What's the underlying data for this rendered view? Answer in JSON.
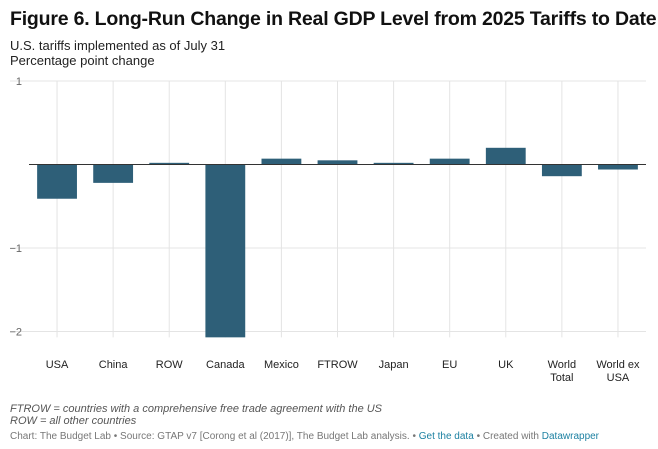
{
  "header": {
    "title": "Figure 6. Long-Run Change in Real GDP Level from 2025 Tariffs to Date",
    "subtitle_line1": "U.S. tariffs implemented as of July 31",
    "subtitle_line2": "Percentage point change"
  },
  "notes": {
    "line1": "FTROW = countries with a comprehensive free trade agreement with the US",
    "line2": "ROW = all other countries"
  },
  "footer": {
    "source": "Chart: The Budget Lab • Source: GTAP v7 [Corong et al (2017)], The Budget Lab analysis. •",
    "get_data": "Get the data",
    "sep": "• Created with",
    "tool": "Datawrapper"
  },
  "colors": {
    "bar": "#2e5f78",
    "grid": "#e4e4e4",
    "zero": "#333333"
  },
  "chart_data": {
    "type": "bar",
    "title": "Figure 6. Long-Run Change in Real GDP Level from 2025 Tariffs to Date",
    "ylabel": "Percentage point change",
    "categories": [
      [
        "USA"
      ],
      [
        "China"
      ],
      [
        "ROW"
      ],
      [
        "Canada"
      ],
      [
        "Mexico"
      ],
      [
        "FTROW"
      ],
      [
        "Japan"
      ],
      [
        "EU"
      ],
      [
        "UK"
      ],
      [
        "World",
        "Total"
      ],
      [
        "World ex",
        "USA"
      ]
    ],
    "values": [
      -0.41,
      -0.22,
      0.02,
      -2.07,
      0.07,
      0.05,
      0.02,
      0.07,
      0.2,
      -0.14,
      -0.06
    ],
    "yticks": [
      1,
      0,
      -1,
      -2
    ],
    "ytick_labels": [
      "1",
      "",
      "−1",
      "−2"
    ],
    "ylim": [
      -2.07,
      1
    ],
    "grid": true,
    "legend": "none"
  }
}
